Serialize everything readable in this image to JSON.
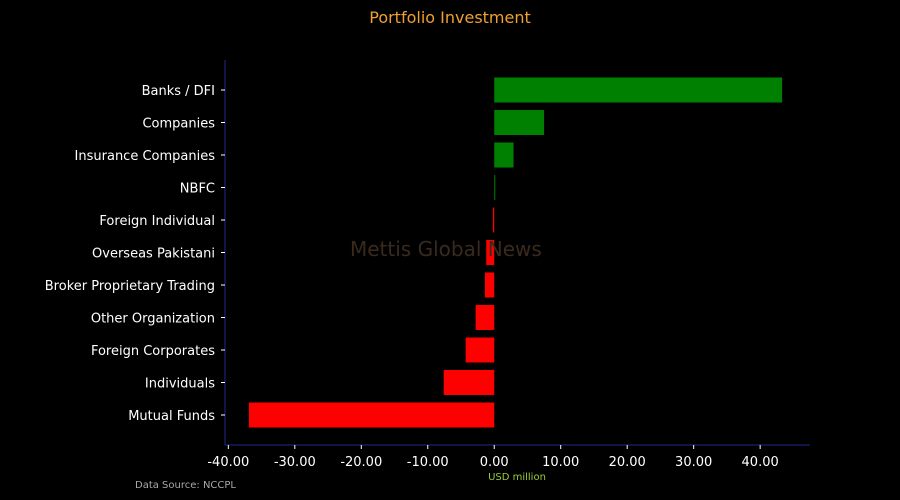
{
  "chart_data": {
    "type": "bar",
    "orientation": "horizontal",
    "title": "Portfolio Investment",
    "xlabel": "USD million",
    "ylabel": "",
    "categories": [
      "Banks / DFI",
      "Companies",
      "Insurance Companies",
      "NBFC",
      "Foreign Individual",
      "Overseas Pakistani",
      "Broker Proprietary Trading",
      "Other Organization",
      "Foreign Corporates ",
      "Individuals",
      "Mutual Funds"
    ],
    "values": [
      43.3,
      7.5,
      2.9,
      0.1,
      -0.2,
      -1.2,
      -1.4,
      -2.8,
      -4.3,
      -7.6,
      -36.9
    ],
    "xlim": [
      -40.5,
      47.5
    ],
    "xticks": [
      "-40.00",
      "-30.00",
      "-20.00",
      "-10.00",
      "0.00",
      "10.00",
      "20.00",
      "30.00",
      "40.00"
    ],
    "xtick_values": [
      -40,
      -30,
      -20,
      -10,
      0,
      10,
      20,
      30,
      40
    ],
    "positive_color": "#008000",
    "negative_color": "#ff0000",
    "axis_color": "#1f2a8a",
    "grid": false,
    "legend": "none"
  },
  "title_color": "#f0a030",
  "watermark": "Mettis Global News",
  "source_note": "Data Source: NCCPL"
}
